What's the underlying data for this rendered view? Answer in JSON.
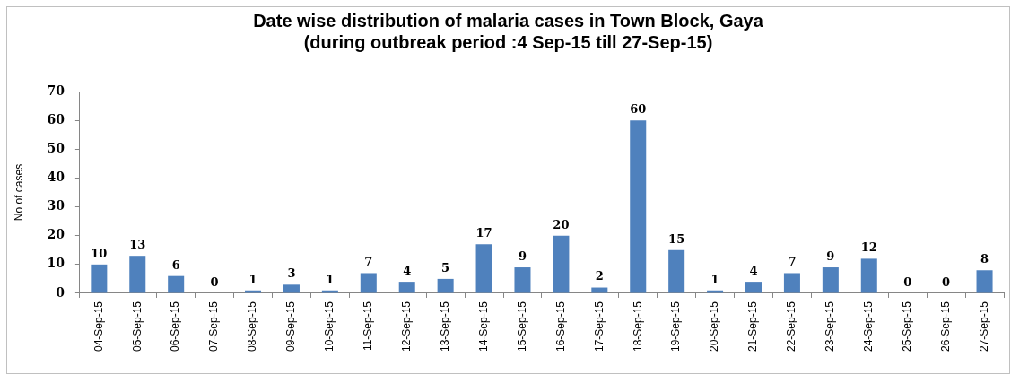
{
  "chart_data": {
    "type": "bar",
    "title": "Date wise distribution of malaria cases in Town Block, Gaya",
    "subtitle": "(during outbreak period :4 Sep-15 till 27-Sep-15)",
    "ylabel": "No of cases",
    "categories": [
      "04-Sep-15",
      "05-Sep-15",
      "06-Sep-15",
      "07-Sep-15",
      "08-Sep-15",
      "09-Sep-15",
      "10-Sep-15",
      "11-Sep-15",
      "12-Sep-15",
      "13-Sep-15",
      "14-Sep-15",
      "15-Sep-15",
      "16-Sep-15",
      "17-Sep-15",
      "18-Sep-15",
      "19-Sep-15",
      "20-Sep-15",
      "21-Sep-15",
      "22-Sep-15",
      "23-Sep-15",
      "24-Sep-15",
      "25-Sep-15",
      "26-Sep-15",
      "27-Sep-15"
    ],
    "values": [
      10,
      13,
      6,
      0,
      1,
      3,
      1,
      7,
      4,
      5,
      17,
      9,
      20,
      2,
      60,
      15,
      1,
      4,
      7,
      9,
      12,
      0,
      0,
      8
    ],
    "color": "#4f81bd",
    "ylim": [
      0,
      70
    ],
    "yticks": [
      0,
      10,
      20,
      30,
      40,
      50,
      60,
      70
    ],
    "grid": false,
    "legend": false,
    "data_labels": true
  }
}
